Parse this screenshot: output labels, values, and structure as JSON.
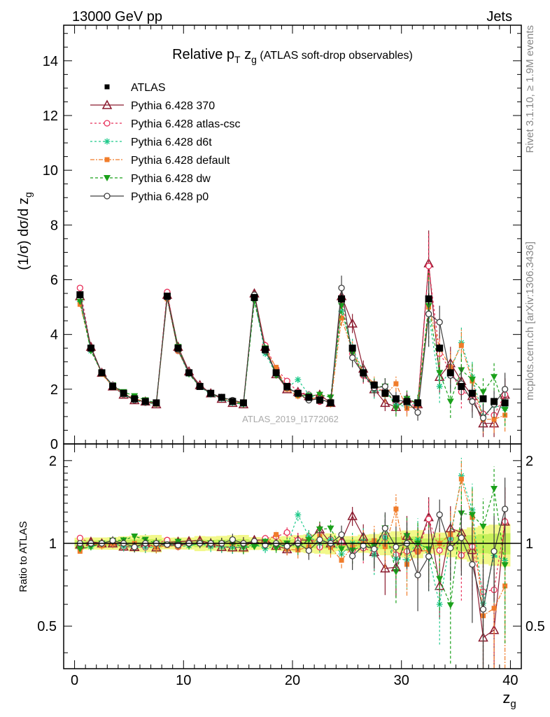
{
  "header": {
    "left": "13000 GeV pp",
    "right": "Jets",
    "side_top": "Rivet 3.1.10, ≥ 1.9M events",
    "side_bottom": "mcplots.cern.ch [arXiv:1306.3436]",
    "watermark": "ATLAS_2019_I1772062"
  },
  "chart_data": [
    {
      "type": "line",
      "title_main": "Relative p",
      "title_sub1": "T",
      "title_mid": " z",
      "title_sub2": "g",
      "title_tail": " (ATLAS soft-drop observables)",
      "ylabel_main": "(1/σ) dσ/d z",
      "ylabel_sub": "g",
      "xlabel_main": "z",
      "xlabel_sub": "g",
      "xlim": [
        -1,
        41
      ],
      "ylim": [
        0,
        15.3
      ],
      "yticks": [
        0,
        2,
        4,
        6,
        8,
        10,
        12,
        14
      ],
      "ytick_labels": [
        "0",
        "2",
        "4",
        "6",
        "8",
        "10",
        "12",
        "14"
      ],
      "x": [
        0.5,
        1.5,
        2.5,
        3.5,
        4.5,
        5.5,
        6.5,
        7.5,
        8.5,
        9.5,
        10.5,
        11.5,
        12.5,
        13.5,
        14.5,
        15.5,
        16.5,
        17.5,
        18.5,
        19.5,
        20.5,
        21.5,
        22.5,
        23.5,
        24.5,
        25.5,
        26.5,
        27.5,
        28.5,
        29.5,
        30.5,
        31.5,
        32.5,
        33.5,
        34.5,
        35.5,
        36.5,
        37.5,
        38.5,
        39.5
      ],
      "data": {
        "name": "ATLAS",
        "values": [
          5.45,
          3.5,
          2.6,
          2.1,
          1.85,
          1.65,
          1.55,
          1.5,
          5.4,
          3.5,
          2.6,
          2.1,
          1.85,
          1.7,
          1.55,
          1.5,
          5.35,
          3.45,
          2.6,
          2.1,
          1.85,
          1.7,
          1.6,
          1.5,
          5.3,
          3.5,
          2.6,
          2.15,
          1.85,
          1.65,
          1.55,
          1.5,
          5.3,
          3.5,
          2.6,
          2.1,
          1.85,
          1.65,
          1.55,
          1.5
        ],
        "errors": [
          0.12,
          0.08,
          0.06,
          0.05,
          0.05,
          0.05,
          0.05,
          0.05,
          0.12,
          0.08,
          0.06,
          0.06,
          0.05,
          0.05,
          0.05,
          0.05,
          0.13,
          0.08,
          0.07,
          0.06,
          0.06,
          0.06,
          0.06,
          0.06,
          0.15,
          0.1,
          0.09,
          0.08,
          0.08,
          0.08,
          0.08,
          0.08,
          0.2,
          0.15,
          0.13,
          0.12,
          0.12,
          0.12,
          0.12,
          0.12
        ]
      },
      "series": [
        {
          "name": "Pythia 6.428 370",
          "color": "#8b1a2e",
          "dash": "",
          "marker": "triangle-open",
          "values": [
            5.4,
            3.55,
            2.6,
            2.1,
            1.8,
            1.6,
            1.55,
            1.45,
            5.45,
            3.55,
            2.65,
            2.15,
            1.85,
            1.65,
            1.5,
            1.45,
            5.5,
            3.55,
            2.55,
            2.0,
            1.9,
            1.75,
            1.8,
            1.5,
            5.4,
            4.4,
            2.75,
            2.0,
            1.5,
            1.35,
            1.65,
            1.45,
            6.6,
            2.45,
            2.95,
            2.3,
            1.75,
            0.75,
            0.75,
            1.8
          ],
          "err": [
            0.1,
            0.1,
            0.08,
            0.08,
            0.07,
            0.07,
            0.07,
            0.07,
            0.1,
            0.1,
            0.08,
            0.08,
            0.08,
            0.08,
            0.08,
            0.08,
            0.12,
            0.12,
            0.1,
            0.1,
            0.12,
            0.12,
            0.12,
            0.12,
            0.3,
            0.35,
            0.3,
            0.3,
            0.3,
            0.3,
            0.3,
            0.3,
            1.2,
            0.6,
            0.6,
            0.6,
            0.6,
            0.5,
            0.5,
            0.6
          ]
        },
        {
          "name": "Pythia 6.428 atlas-csc",
          "color": "#e8305a",
          "dash": "3,3",
          "marker": "circle-open",
          "values": [
            5.7,
            3.5,
            2.6,
            2.1,
            1.8,
            1.6,
            1.5,
            1.5,
            5.55,
            3.4,
            2.6,
            2.1,
            1.85,
            1.7,
            1.55,
            1.5,
            5.4,
            3.6,
            2.75,
            2.3,
            1.9,
            1.8,
            1.55,
            1.55,
            5.35,
            3.3,
            2.5,
            2.0,
            1.95,
            1.5,
            1.45,
            1.4,
            6.5,
            3.3,
            2.7,
            1.9,
            1.8,
            1.1,
            1.05,
            1.8
          ],
          "err": [
            0.1,
            0.1,
            0.08,
            0.08,
            0.07,
            0.07,
            0.07,
            0.07,
            0.1,
            0.1,
            0.08,
            0.08,
            0.08,
            0.08,
            0.08,
            0.08,
            0.12,
            0.12,
            0.1,
            0.1,
            0.12,
            0.12,
            0.12,
            0.12,
            0.3,
            0.35,
            0.3,
            0.3,
            0.3,
            0.3,
            0.3,
            0.3,
            1.2,
            0.6,
            0.6,
            0.6,
            0.6,
            0.5,
            0.5,
            0.6
          ]
        },
        {
          "name": "Pythia 6.428 d6t",
          "color": "#1dc98a",
          "dash": "3,3",
          "marker": "star",
          "values": [
            5.2,
            3.4,
            2.6,
            2.1,
            1.8,
            1.6,
            1.5,
            1.45,
            5.35,
            3.4,
            2.55,
            2.1,
            1.8,
            1.65,
            1.5,
            1.45,
            5.3,
            3.3,
            2.55,
            2.05,
            2.35,
            1.8,
            1.6,
            1.55,
            4.85,
            3.5,
            2.65,
            1.95,
            1.95,
            1.45,
            1.35,
            1.55,
            4.75,
            2.1,
            2.7,
            3.7,
            2.45,
            1.0,
            1.4,
            1.3
          ],
          "err": [
            0.1,
            0.1,
            0.08,
            0.08,
            0.07,
            0.07,
            0.07,
            0.07,
            0.1,
            0.1,
            0.08,
            0.08,
            0.08,
            0.08,
            0.08,
            0.08,
            0.12,
            0.12,
            0.1,
            0.1,
            0.12,
            0.12,
            0.12,
            0.12,
            0.3,
            0.35,
            0.3,
            0.3,
            0.3,
            0.3,
            0.3,
            0.3,
            1.2,
            0.6,
            0.6,
            0.6,
            0.6,
            0.5,
            0.5,
            0.6
          ]
        },
        {
          "name": "Pythia 6.428 default",
          "color": "#f07c2a",
          "dash": "6,2,2,2",
          "marker": "square",
          "values": [
            5.1,
            3.5,
            2.55,
            2.1,
            1.85,
            1.65,
            1.55,
            1.45,
            5.3,
            3.4,
            2.6,
            2.1,
            1.85,
            1.7,
            1.55,
            1.5,
            5.45,
            3.45,
            2.8,
            2.0,
            1.75,
            1.65,
            1.7,
            1.45,
            4.6,
            3.4,
            2.6,
            2.2,
            1.8,
            2.2,
            1.3,
            1.4,
            5.0,
            3.5,
            2.8,
            3.6,
            2.3,
            0.9,
            0.9,
            1.05
          ],
          "err": [
            0.1,
            0.1,
            0.08,
            0.08,
            0.07,
            0.07,
            0.07,
            0.07,
            0.1,
            0.1,
            0.08,
            0.08,
            0.08,
            0.08,
            0.08,
            0.08,
            0.12,
            0.12,
            0.1,
            0.1,
            0.12,
            0.12,
            0.12,
            0.12,
            0.3,
            0.35,
            0.3,
            0.3,
            0.3,
            0.3,
            0.3,
            0.3,
            1.2,
            0.6,
            0.6,
            0.6,
            0.6,
            0.5,
            0.5,
            0.6
          ]
        },
        {
          "name": "Pythia 6.428 dw",
          "color": "#1aa01a",
          "dash": "4,3",
          "marker": "triangle-down",
          "values": [
            5.2,
            3.4,
            2.6,
            2.15,
            1.9,
            1.75,
            1.6,
            1.5,
            5.35,
            3.55,
            2.55,
            2.1,
            1.85,
            1.7,
            1.55,
            1.45,
            5.2,
            3.5,
            2.5,
            2.1,
            1.8,
            1.75,
            1.8,
            1.7,
            5.05,
            3.3,
            2.55,
            2.1,
            2.1,
            1.3,
            1.65,
            1.5,
            5.05,
            2.6,
            1.55,
            2.7,
            2.35,
            1.9,
            2.45,
            1.25
          ],
          "err": [
            0.1,
            0.1,
            0.08,
            0.08,
            0.07,
            0.07,
            0.07,
            0.07,
            0.1,
            0.1,
            0.08,
            0.08,
            0.08,
            0.08,
            0.08,
            0.08,
            0.12,
            0.12,
            0.1,
            0.1,
            0.12,
            0.12,
            0.12,
            0.12,
            0.3,
            0.35,
            0.3,
            0.3,
            0.3,
            0.3,
            0.3,
            0.3,
            1.2,
            0.6,
            0.6,
            0.6,
            0.6,
            0.5,
            0.5,
            0.6
          ]
        },
        {
          "name": "Pythia 6.428 p0",
          "color": "#404040",
          "dash": "",
          "marker": "circle-open",
          "values": [
            5.45,
            3.5,
            2.6,
            2.15,
            1.85,
            1.6,
            1.55,
            1.5,
            5.35,
            3.45,
            2.6,
            2.1,
            1.85,
            1.7,
            1.6,
            1.5,
            5.45,
            3.4,
            2.6,
            2.05,
            1.85,
            1.6,
            1.65,
            1.5,
            5.7,
            3.15,
            2.55,
            2.05,
            2.1,
            1.6,
            1.55,
            1.15,
            4.75,
            4.45,
            2.5,
            2.2,
            1.55,
            0.95,
            1.45,
            2.0
          ],
          "err": [
            0.1,
            0.1,
            0.08,
            0.08,
            0.07,
            0.07,
            0.07,
            0.07,
            0.1,
            0.1,
            0.08,
            0.08,
            0.08,
            0.08,
            0.08,
            0.08,
            0.12,
            0.12,
            0.1,
            0.1,
            0.12,
            0.12,
            0.12,
            0.12,
            0.45,
            0.35,
            0.3,
            0.3,
            0.3,
            0.3,
            0.3,
            0.3,
            1.2,
            0.6,
            0.6,
            0.6,
            0.6,
            0.5,
            0.5,
            0.6
          ]
        }
      ]
    },
    {
      "type": "line",
      "ylabel": "Ratio to ATLAS",
      "xlim": [
        -1,
        41
      ],
      "ylim": [
        0.35,
        2.3
      ],
      "ylog": true,
      "yticks": [
        0.5,
        1,
        2
      ],
      "ytick_labels": [
        "0.5",
        "1",
        "2"
      ],
      "xticks": [
        0,
        10,
        20,
        30,
        40
      ],
      "xtick_labels": [
        "0",
        "10",
        "20",
        "30",
        "40"
      ],
      "band_inner": "#c8f05a",
      "band_outer": "#f2f88a",
      "reference_line": 1
    }
  ]
}
